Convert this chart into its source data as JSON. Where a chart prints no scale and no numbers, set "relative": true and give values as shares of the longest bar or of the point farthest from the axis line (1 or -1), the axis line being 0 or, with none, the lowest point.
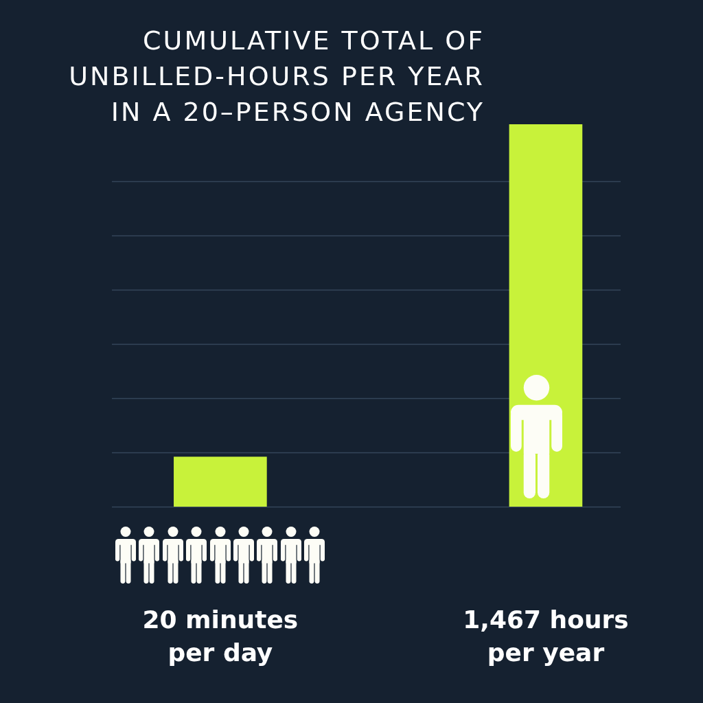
{
  "chart_data": {
    "type": "bar",
    "title": "CUMULATIVE TOTAL OF UNBILLED-HOURS PER YEAR IN A 20–PERSON AGENCY",
    "categories": [
      "20 minutes per day",
      "1,467 hours per year"
    ],
    "values": [
      0.13,
      1
    ],
    "relative": true,
    "color": "#c8f23a",
    "grid": "y"
  }
}
